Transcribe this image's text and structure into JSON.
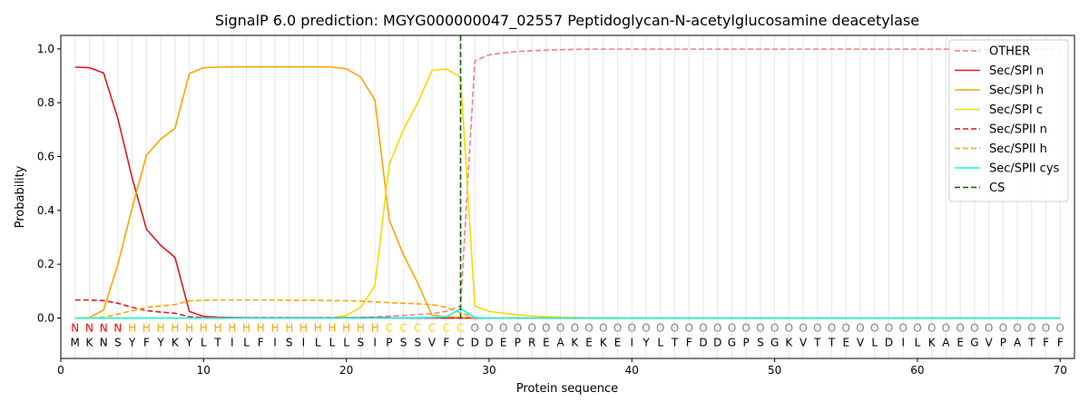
{
  "chart_data": {
    "type": "line",
    "title": "SignalP 6.0 prediction: MGYG000000047_02557 Peptidoglycan-N-acetylglucosamine deacetylase",
    "xlabel": "Protein sequence",
    "ylabel": "Probability",
    "xlim": [
      0,
      71
    ],
    "ylim": [
      -0.15,
      1.05
    ],
    "x_ticks": [
      0,
      10,
      20,
      30,
      40,
      50,
      60,
      70
    ],
    "y_ticks": [
      0.0,
      0.2,
      0.4,
      0.6,
      0.8,
      1.0
    ],
    "x_tick_labels": [
      "0",
      "10",
      "20",
      "30",
      "40",
      "50",
      "60",
      "70"
    ],
    "y_tick_labels": [
      "0.0",
      "0.2",
      "0.4",
      "0.6",
      "0.8",
      "1.0"
    ],
    "grid": "vertical lines at each residue position",
    "legend_position": "top-right",
    "cleavage_site": 28,
    "sequence": [
      "M",
      "K",
      "N",
      "S",
      "Y",
      "F",
      "Y",
      "K",
      "Y",
      "L",
      "T",
      "I",
      "L",
      "F",
      "I",
      "S",
      "I",
      "L",
      "L",
      "L",
      "S",
      "I",
      "P",
      "S",
      "S",
      "V",
      "F",
      "C",
      "D",
      "D",
      "E",
      "P",
      "R",
      "E",
      "A",
      "K",
      "E",
      "K",
      "E",
      "I",
      "Y",
      "L",
      "T",
      "F",
      "D",
      "D",
      "G",
      "P",
      "S",
      "G",
      "K",
      "V",
      "T",
      "T",
      "E",
      "V",
      "L",
      "D",
      "I",
      "L",
      "K",
      "A",
      "E",
      "G",
      "V",
      "P",
      "A",
      "T",
      "F",
      "F"
    ],
    "region_labels": [
      "N",
      "N",
      "N",
      "N",
      "H",
      "H",
      "H",
      "H",
      "H",
      "H",
      "H",
      "H",
      "H",
      "H",
      "H",
      "H",
      "H",
      "H",
      "H",
      "H",
      "H",
      "H",
      "C",
      "C",
      "C",
      "C",
      "C",
      "C",
      "O",
      "O",
      "O",
      "O",
      "O",
      "O",
      "O",
      "O",
      "O",
      "O",
      "O",
      "O",
      "O",
      "O",
      "O",
      "O",
      "O",
      "O",
      "O",
      "O",
      "O",
      "O",
      "O",
      "O",
      "O",
      "O",
      "O",
      "O",
      "O",
      "O",
      "O",
      "O",
      "O",
      "O",
      "O",
      "O",
      "O",
      "O",
      "O",
      "O",
      "O",
      "O"
    ],
    "region_colors": {
      "N": "#ff0000",
      "H": "#ffa500",
      "C": "#ffd700",
      "O": "#808080"
    },
    "series": [
      {
        "name": "OTHER",
        "color": "#f08080",
        "dash": "dashed",
        "values": [
          0.0,
          0.0,
          0.0,
          0.0,
          0.0,
          0.0,
          0.0,
          0.0,
          0.0,
          0.0,
          0.0,
          0.0,
          0.0,
          0.0,
          0.0,
          0.0,
          0.0,
          0.0,
          0.0,
          0.0,
          0.002,
          0.004,
          0.007,
          0.01,
          0.013,
          0.016,
          0.025,
          0.045,
          0.955,
          0.978,
          0.985,
          0.99,
          0.993,
          0.995,
          0.997,
          0.998,
          0.999,
          0.999,
          0.999,
          0.999,
          0.999,
          0.999,
          0.999,
          0.999,
          0.999,
          0.999,
          0.999,
          0.999,
          0.999,
          0.999,
          0.999,
          0.999,
          0.999,
          0.999,
          0.999,
          0.999,
          0.999,
          0.999,
          0.999,
          0.999,
          0.999,
          0.999,
          0.999,
          0.999,
          0.999,
          0.999,
          0.999,
          0.999,
          0.999,
          0.999
        ]
      },
      {
        "name": "Sec/SPI n",
        "color": "#e41a1c",
        "dash": "solid",
        "values": [
          0.932,
          0.93,
          0.91,
          0.74,
          0.52,
          0.33,
          0.27,
          0.225,
          0.025,
          0.006,
          0.003,
          0.002,
          0.001,
          0.001,
          0.001,
          0.001,
          0.001,
          0.001,
          0.001,
          0.001,
          0.001,
          0.001,
          0.001,
          0.0,
          0.0,
          0.0,
          0.0,
          0.0,
          0.0,
          0.0,
          0.0,
          0.0,
          0.0,
          0.0,
          0.0,
          0.0,
          0.0,
          0.0,
          0.0,
          0.0,
          0.0,
          0.0,
          0.0,
          0.0,
          0.0,
          0.0,
          0.0,
          0.0,
          0.0,
          0.0,
          0.0,
          0.0,
          0.0,
          0.0,
          0.0,
          0.0,
          0.0,
          0.0,
          0.0,
          0.0,
          0.0,
          0.0,
          0.0,
          0.0,
          0.0,
          0.0,
          0.0,
          0.0,
          0.0,
          0.0
        ]
      },
      {
        "name": "Sec/SPI h",
        "color": "#ffa500",
        "dash": "solid",
        "values": [
          0.0,
          0.002,
          0.03,
          0.2,
          0.41,
          0.605,
          0.665,
          0.705,
          0.908,
          0.93,
          0.932,
          0.933,
          0.933,
          0.933,
          0.933,
          0.933,
          0.933,
          0.933,
          0.932,
          0.926,
          0.895,
          0.81,
          0.365,
          0.235,
          0.13,
          0.01,
          0.005,
          0.002,
          0.001,
          0.0,
          0.0,
          0.0,
          0.0,
          0.0,
          0.0,
          0.0,
          0.0,
          0.0,
          0.0,
          0.0,
          0.0,
          0.0,
          0.0,
          0.0,
          0.0,
          0.0,
          0.0,
          0.0,
          0.0,
          0.0,
          0.0,
          0.0,
          0.0,
          0.0,
          0.0,
          0.0,
          0.0,
          0.0,
          0.0,
          0.0,
          0.0,
          0.0,
          0.0,
          0.0,
          0.0,
          0.0,
          0.0,
          0.0,
          0.0,
          0.0
        ]
      },
      {
        "name": "Sec/SPI c",
        "color": "#ffd700",
        "dash": "solid",
        "values": [
          0.0,
          0.0,
          0.0,
          0.0,
          0.0,
          0.0,
          0.0,
          0.0,
          0.0,
          0.0,
          0.0,
          0.0,
          0.0,
          0.0,
          0.0,
          0.0,
          0.0,
          0.0,
          0.001,
          0.01,
          0.04,
          0.12,
          0.57,
          0.7,
          0.8,
          0.92,
          0.925,
          0.895,
          0.045,
          0.025,
          0.018,
          0.012,
          0.008,
          0.005,
          0.003,
          0.002,
          0.001,
          0.001,
          0.001,
          0.0,
          0.0,
          0.0,
          0.0,
          0.0,
          0.0,
          0.0,
          0.0,
          0.0,
          0.0,
          0.0,
          0.0,
          0.0,
          0.0,
          0.0,
          0.0,
          0.0,
          0.0,
          0.0,
          0.0,
          0.0,
          0.0,
          0.0,
          0.0,
          0.0,
          0.0,
          0.0,
          0.0,
          0.0,
          0.0,
          0.0
        ]
      },
      {
        "name": "Sec/SPII n",
        "color": "#e41a1c",
        "dash": "dashed",
        "values": [
          0.067,
          0.067,
          0.065,
          0.055,
          0.04,
          0.028,
          0.022,
          0.018,
          0.005,
          0.002,
          0.001,
          0.001,
          0.001,
          0.001,
          0.001,
          0.001,
          0.001,
          0.001,
          0.001,
          0.001,
          0.001,
          0.001,
          0.001,
          0.0,
          0.0,
          0.0,
          0.0,
          0.0,
          0.0,
          0.0,
          0.0,
          0.0,
          0.0,
          0.0,
          0.0,
          0.0,
          0.0,
          0.0,
          0.0,
          0.0,
          0.0,
          0.0,
          0.0,
          0.0,
          0.0,
          0.0,
          0.0,
          0.0,
          0.0,
          0.0,
          0.0,
          0.0,
          0.0,
          0.0,
          0.0,
          0.0,
          0.0,
          0.0,
          0.0,
          0.0,
          0.0,
          0.0,
          0.0,
          0.0,
          0.0,
          0.0,
          0.0,
          0.0,
          0.0,
          0.0
        ]
      },
      {
        "name": "Sec/SPII h",
        "color": "#ffa500",
        "dash": "dashed",
        "values": [
          0.0,
          0.0,
          0.003,
          0.015,
          0.027,
          0.04,
          0.045,
          0.05,
          0.064,
          0.066,
          0.067,
          0.067,
          0.067,
          0.067,
          0.067,
          0.066,
          0.066,
          0.066,
          0.065,
          0.064,
          0.063,
          0.06,
          0.057,
          0.055,
          0.053,
          0.05,
          0.04,
          0.02,
          0.001,
          0.0,
          0.0,
          0.0,
          0.0,
          0.0,
          0.0,
          0.0,
          0.0,
          0.0,
          0.0,
          0.0,
          0.0,
          0.0,
          0.0,
          0.0,
          0.0,
          0.0,
          0.0,
          0.0,
          0.0,
          0.0,
          0.0,
          0.0,
          0.0,
          0.0,
          0.0,
          0.0,
          0.0,
          0.0,
          0.0,
          0.0,
          0.0,
          0.0,
          0.0,
          0.0,
          0.0,
          0.0,
          0.0,
          0.0,
          0.0,
          0.0
        ]
      },
      {
        "name": "Sec/SPII cys",
        "color": "#00ffff",
        "dash": "solid",
        "values": [
          0.0,
          0.0,
          0.0,
          0.0,
          0.0,
          0.0,
          0.0,
          0.0,
          0.0,
          0.0,
          0.0,
          0.0,
          0.0,
          0.0,
          0.0,
          0.0,
          0.0,
          0.0,
          0.0,
          0.0,
          0.0,
          0.0,
          0.0,
          0.0,
          0.001,
          0.002,
          0.005,
          0.035,
          0.002,
          0.0,
          0.0,
          0.0,
          0.0,
          0.0,
          0.0,
          0.0,
          0.0,
          0.0,
          0.0,
          0.0,
          0.0,
          0.0,
          0.0,
          0.0,
          0.0,
          0.0,
          0.0,
          0.0,
          0.0,
          0.0,
          0.0,
          0.0,
          0.0,
          0.0,
          0.0,
          0.0,
          0.0,
          0.0,
          0.0,
          0.0,
          0.0,
          0.0,
          0.0,
          0.0,
          0.0,
          0.0,
          0.0,
          0.0,
          0.0,
          0.0
        ]
      }
    ],
    "cs_legend": {
      "name": "CS",
      "color": "#006400",
      "dash": "dashed"
    }
  }
}
